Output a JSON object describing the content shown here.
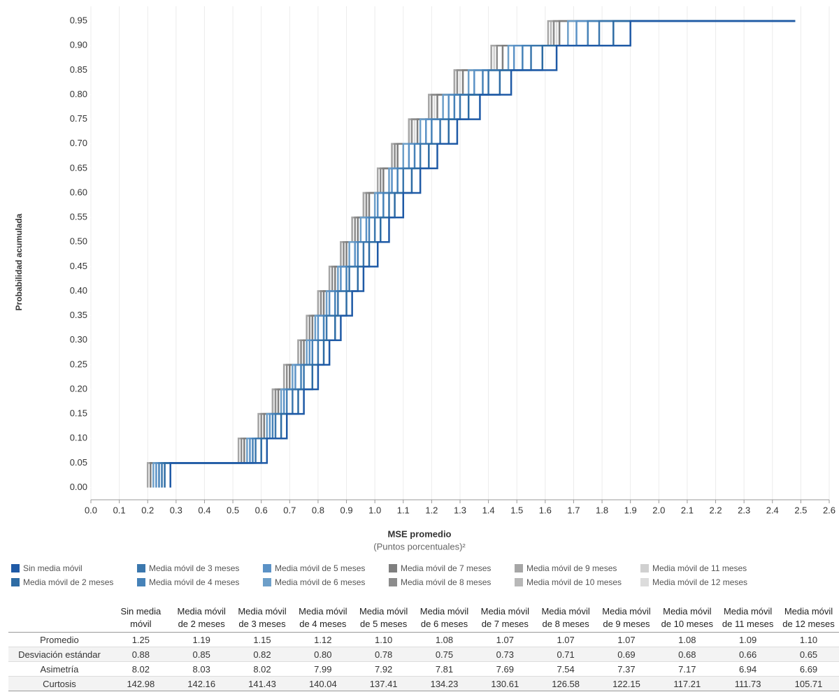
{
  "chart_data": {
    "type": "step",
    "y_title": "Probabilidad acumulada",
    "x_title": "MSE promedio",
    "x_subtitle": "(Puntos porcentuales)²",
    "grid": true,
    "y": [
      0,
      0.05,
      0.1,
      0.15,
      0.2,
      0.25,
      0.3,
      0.35,
      0.4,
      0.45,
      0.5,
      0.55,
      0.6,
      0.65,
      0.7,
      0.75,
      0.8,
      0.85,
      0.9,
      0.95
    ],
    "xlim": [
      0,
      2.6
    ],
    "ylim": [
      -0.025,
      0.98
    ],
    "xticks": [
      {
        "value": 0,
        "label": "0.0"
      },
      0.1,
      0.2,
      0.3,
      0.4,
      0.5,
      0.6,
      0.7,
      0.8,
      0.9,
      {
        "value": 1,
        "label": "1.0"
      },
      1.1,
      1.2,
      1.3,
      1.4,
      1.5,
      1.6,
      1.7,
      1.8,
      1.9,
      {
        "value": 2,
        "label": "2.0"
      },
      2.1,
      2.2,
      2.3,
      2.4,
      2.5,
      2.6
    ],
    "yticks": [
      {
        "value": 0,
        "label": "0.00"
      },
      0.05,
      {
        "value": 0.1,
        "label": "0.10"
      },
      0.15,
      {
        "value": 0.2,
        "label": "0.20"
      },
      0.25,
      {
        "value": 0.3,
        "label": "0.30"
      },
      0.35,
      {
        "value": 0.4,
        "label": "0.40"
      },
      0.45,
      {
        "value": 0.5,
        "label": "0.50"
      },
      0.55,
      {
        "value": 0.6,
        "label": "0.60"
      },
      0.65,
      {
        "value": 0.7,
        "label": "0.70"
      },
      0.75,
      {
        "value": 0.8,
        "label": "0.80"
      },
      0.85,
      {
        "value": 0.9,
        "label": "0.90"
      },
      0.95
    ],
    "series": [
      {
        "name": "Sin media móvil",
        "color": "#1f5aa6",
        "x": [
          0.28,
          0.62,
          0.69,
          0.75,
          0.8,
          0.84,
          0.88,
          0.92,
          0.96,
          1.01,
          1.05,
          1.1,
          1.16,
          1.22,
          1.29,
          1.37,
          1.48,
          1.64,
          1.9,
          2.48
        ]
      },
      {
        "name": "Media móvil de 2 meses",
        "color": "#2e6ca4",
        "x": [
          0.26,
          0.6,
          0.67,
          0.73,
          0.78,
          0.82,
          0.86,
          0.9,
          0.94,
          0.98,
          1.02,
          1.07,
          1.13,
          1.19,
          1.26,
          1.33,
          1.44,
          1.59,
          1.84,
          2.48
        ]
      },
      {
        "name": "Media móvil de 3 meses",
        "color": "#3b77ad",
        "x": [
          0.25,
          0.58,
          0.65,
          0.71,
          0.75,
          0.8,
          0.83,
          0.87,
          0.91,
          0.96,
          1.0,
          1.05,
          1.1,
          1.16,
          1.23,
          1.3,
          1.4,
          1.55,
          1.79,
          2.48
        ]
      },
      {
        "name": "Media móvil de 4 meses",
        "color": "#4682b8",
        "x": [
          0.24,
          0.57,
          0.64,
          0.69,
          0.74,
          0.78,
          0.82,
          0.86,
          0.9,
          0.94,
          0.98,
          1.03,
          1.08,
          1.14,
          1.2,
          1.28,
          1.38,
          1.52,
          1.75,
          2.48
        ]
      },
      {
        "name": "Media móvil de 5 meses",
        "color": "#5b92c6",
        "x": [
          0.23,
          0.56,
          0.63,
          0.68,
          0.72,
          0.77,
          0.8,
          0.84,
          0.88,
          0.93,
          0.97,
          1.01,
          1.06,
          1.12,
          1.18,
          1.26,
          1.35,
          1.49,
          1.71,
          2.48
        ]
      },
      {
        "name": "Media móvil de 6 meses",
        "color": "#6d9fc9",
        "x": [
          0.22,
          0.55,
          0.62,
          0.67,
          0.71,
          0.76,
          0.79,
          0.83,
          0.87,
          0.91,
          0.95,
          1.0,
          1.05,
          1.1,
          1.16,
          1.24,
          1.33,
          1.47,
          1.68,
          2.48
        ]
      },
      {
        "name": "Media móvil de 7 meses",
        "color": "#7f7f7f",
        "x": [
          0.21,
          0.54,
          0.61,
          0.66,
          0.7,
          0.75,
          0.78,
          0.82,
          0.86,
          0.9,
          0.94,
          0.98,
          1.03,
          1.08,
          1.15,
          1.22,
          1.31,
          1.45,
          1.65,
          2.48
        ]
      },
      {
        "name": "Media móvil de 8 meses",
        "color": "#8c8c8c",
        "x": [
          0.21,
          0.53,
          0.6,
          0.65,
          0.69,
          0.74,
          0.77,
          0.81,
          0.85,
          0.89,
          0.93,
          0.97,
          1.02,
          1.07,
          1.13,
          1.2,
          1.29,
          1.43,
          1.63,
          2.48
        ]
      },
      {
        "name": "Media móvil de 9 meses",
        "color": "#a6a6a6",
        "x": [
          0.2,
          0.52,
          0.59,
          0.64,
          0.68,
          0.73,
          0.76,
          0.8,
          0.84,
          0.88,
          0.92,
          0.96,
          1.01,
          1.06,
          1.12,
          1.19,
          1.28,
          1.41,
          1.61,
          2.48
        ]
      },
      {
        "name": "Media móvil de 10 meses",
        "color": "#b8b8b8",
        "x": [
          0.2,
          0.52,
          0.59,
          0.64,
          0.68,
          0.73,
          0.76,
          0.8,
          0.84,
          0.88,
          0.92,
          0.96,
          1.01,
          1.06,
          1.12,
          1.19,
          1.28,
          1.41,
          1.62,
          2.48
        ]
      },
      {
        "name": "Media móvil de 11 meses",
        "color": "#d0d0d0",
        "x": [
          0.21,
          0.53,
          0.6,
          0.65,
          0.69,
          0.74,
          0.77,
          0.81,
          0.85,
          0.89,
          0.93,
          0.97,
          1.02,
          1.07,
          1.13,
          1.2,
          1.29,
          1.42,
          1.63,
          2.48
        ]
      },
      {
        "name": "Media móvil de 12 meses",
        "color": "#dcdcdc",
        "x": [
          0.21,
          0.53,
          0.6,
          0.65,
          0.69,
          0.74,
          0.77,
          0.81,
          0.85,
          0.89,
          0.93,
          0.97,
          1.03,
          1.08,
          1.14,
          1.21,
          1.3,
          1.43,
          1.64,
          2.48
        ]
      }
    ],
    "table": {
      "columns": [
        "Sin media móvil",
        "Media móvil de 2 meses",
        "Media móvil de 3 meses",
        "Media móvil de 4 meses",
        "Media móvil de 5 meses",
        "Media móvil de 6 meses",
        "Media móvil de 7 meses",
        "Media móvil de 8 meses",
        "Media móvil de 9 meses",
        "Media móvil de 10 meses",
        "Media móvil de 11 meses",
        "Media móvil de 12 meses"
      ],
      "rows": [
        {
          "label": "Promedio",
          "values": [
            "1.25",
            "1.19",
            "1.15",
            "1.12",
            "1.10",
            "1.08",
            "1.07",
            "1.07",
            "1.07",
            "1.08",
            "1.09",
            "1.10"
          ]
        },
        {
          "label": "Desviación estándar",
          "values": [
            "0.88",
            "0.85",
            "0.82",
            "0.80",
            "0.78",
            "0.75",
            "0.73",
            "0.71",
            "0.69",
            "0.68",
            "0.66",
            "0.65"
          ]
        },
        {
          "label": "Asimetría",
          "values": [
            "8.02",
            "8.03",
            "8.02",
            "7.99",
            "7.92",
            "7.81",
            "7.69",
            "7.54",
            "7.37",
            "7.17",
            "6.94",
            "6.69"
          ]
        },
        {
          "label": "Curtosis",
          "values": [
            "142.98",
            "142.16",
            "141.43",
            "140.04",
            "137.41",
            "134.23",
            "130.61",
            "126.58",
            "122.15",
            "117.21",
            "111.73",
            "105.71"
          ]
        }
      ]
    }
  }
}
